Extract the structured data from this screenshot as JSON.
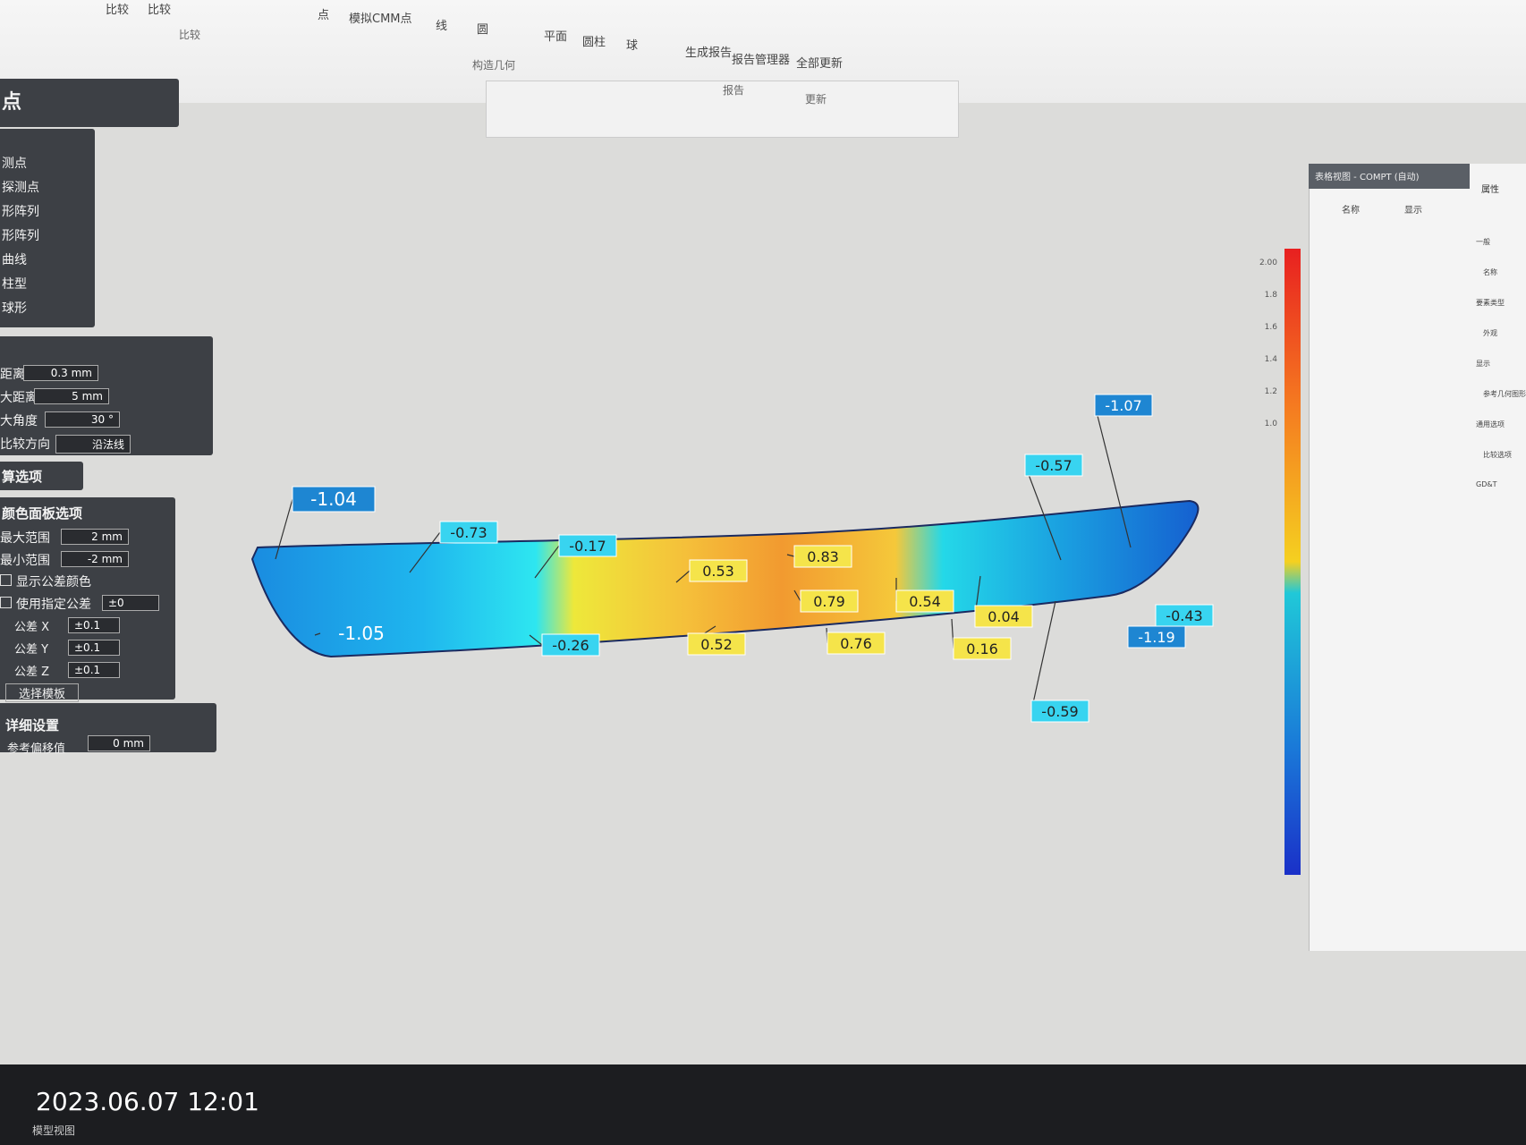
{
  "ribbon": {
    "items": [
      "比较",
      "比较",
      "点",
      "模拟CMM点",
      "线",
      "圆",
      "平面",
      "圆柱",
      "球",
      "生成报告",
      "报告管理器",
      "全部更新"
    ],
    "groups": [
      "比较",
      "构造几何",
      "报告",
      "更新"
    ]
  },
  "left_panel": {
    "title": "点",
    "features": [
      "测点",
      "探测点",
      "形阵列",
      "形阵列",
      "曲线",
      "柱型",
      "球形"
    ],
    "params": [
      {
        "label": "距离",
        "value": "0.3 mm"
      },
      {
        "label": "大距离",
        "value": "5 mm"
      },
      {
        "label": "大角度",
        "value": "30 °"
      },
      {
        "label": "比较方向",
        "value": "沿法线"
      }
    ],
    "calc_title": "算选项",
    "color_title": "颜色面板选项",
    "color_params": [
      {
        "label": "最大范围",
        "value": "2 mm"
      },
      {
        "label": "最小范围",
        "value": "-2 mm"
      }
    ],
    "checks": [
      {
        "label": "显示公差颜色"
      },
      {
        "label": "使用指定公差",
        "value": "±0"
      }
    ],
    "tolerances": [
      {
        "label": "公差 X",
        "value": "±0.1"
      },
      {
        "label": "公差 Y",
        "value": "±0.1"
      },
      {
        "label": "公差 Z",
        "value": "±0.1"
      }
    ],
    "template_button": "选择模板",
    "detail_title": "详细设置",
    "offset": {
      "label": "参考偏移值",
      "value": "0 mm"
    }
  },
  "deviations": [
    -1.04,
    -0.73,
    -0.17,
    0.53,
    0.83,
    0.79,
    0.54,
    0.04,
    0.16,
    0.76,
    0.52,
    -0.26,
    -1.05,
    -0.57,
    -1.07,
    -0.43,
    -1.19,
    -0.59
  ],
  "color_scale": {
    "labels": [
      "2.00",
      "1.8",
      "1.6",
      "1.4",
      "1.2",
      "1.0"
    ]
  },
  "table_view": {
    "title": "表格视图 - COMPT (自动)",
    "columns": [
      "名称",
      "显示"
    ]
  },
  "properties": {
    "title": "属性",
    "items": [
      "一般",
      "名称",
      "要素类型",
      "外观",
      "显示",
      "参考几何图形",
      "通用选项",
      "比较选项",
      "GD&T"
    ]
  },
  "status": {
    "timestamp": "2023.06.07 12:01",
    "view_tab": "模型视图"
  }
}
